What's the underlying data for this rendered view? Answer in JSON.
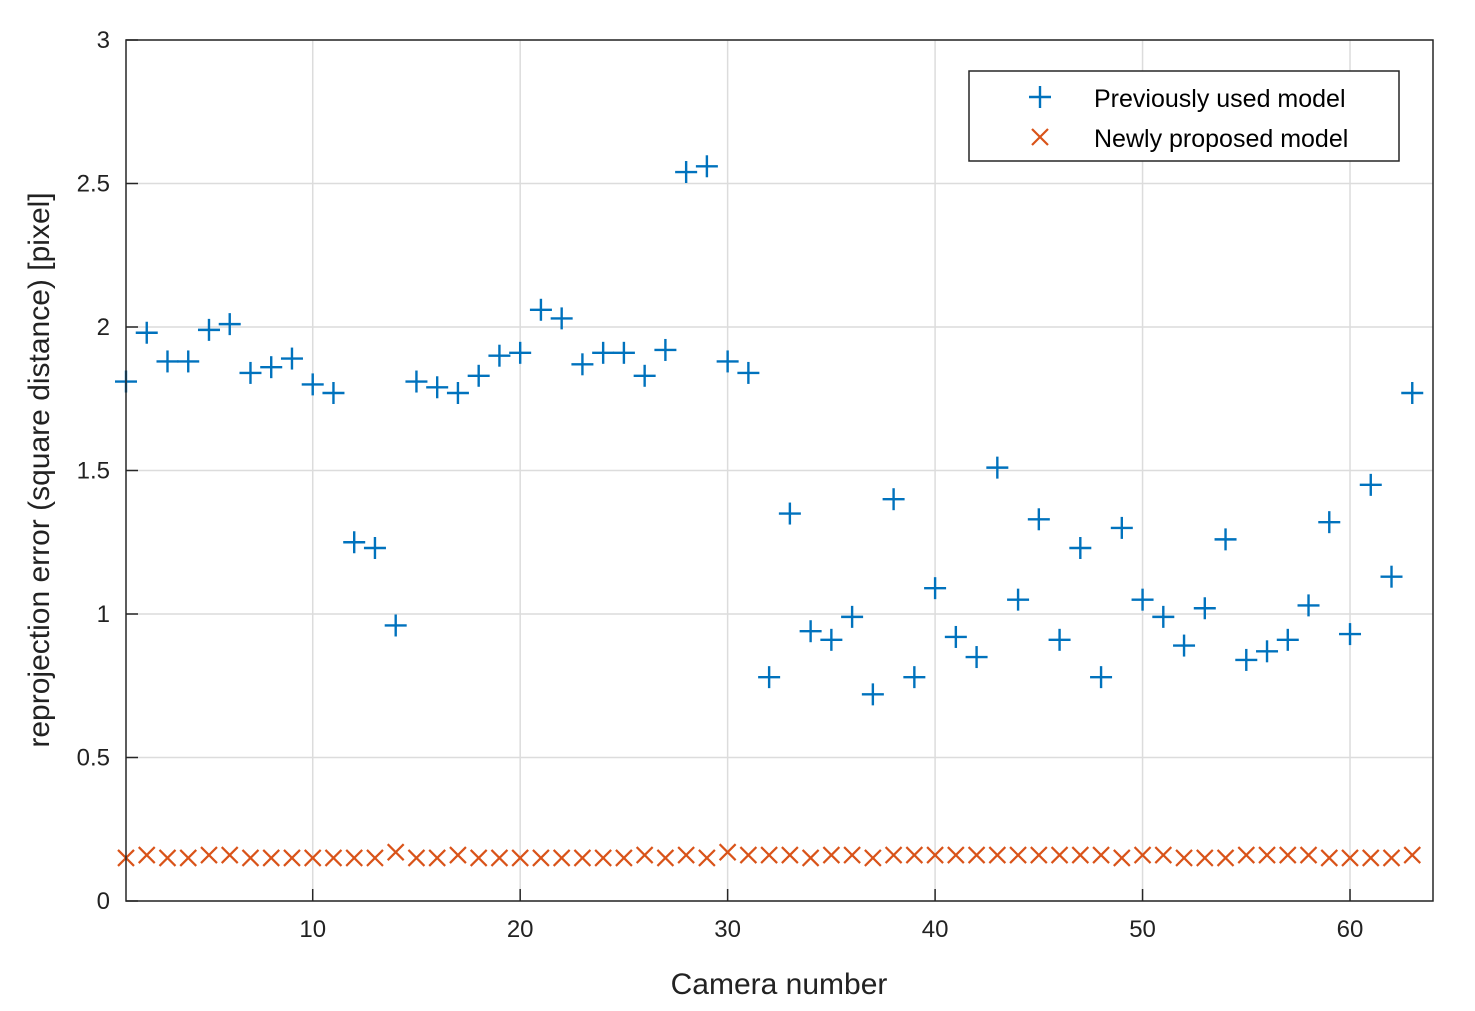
{
  "chart_data": {
    "type": "scatter",
    "title": "",
    "xlabel": "Camera number",
    "ylabel": "reprojection error (square distance) [pixel]",
    "xlim": [
      1,
      64
    ],
    "ylim": [
      0,
      3
    ],
    "xticks": [
      10,
      20,
      30,
      40,
      50,
      60
    ],
    "xtick_labels": [
      "10",
      "20",
      "30",
      "40",
      "50",
      "60"
    ],
    "yticks": [
      0,
      0.5,
      1,
      1.5,
      2,
      2.5,
      3
    ],
    "ytick_labels": [
      "0",
      "0.5",
      "1",
      "1.5",
      "2",
      "2.5",
      "3"
    ],
    "grid": true,
    "legend_position": "top-right",
    "x": [
      1,
      2,
      3,
      4,
      5,
      6,
      7,
      8,
      9,
      10,
      11,
      12,
      13,
      14,
      15,
      16,
      17,
      18,
      19,
      20,
      21,
      22,
      23,
      24,
      25,
      26,
      27,
      28,
      29,
      30,
      31,
      32,
      33,
      34,
      35,
      36,
      37,
      38,
      39,
      40,
      41,
      42,
      43,
      44,
      45,
      46,
      47,
      48,
      49,
      50,
      51,
      52,
      53,
      54,
      55,
      56,
      57,
      58,
      59,
      60,
      61,
      62,
      63
    ],
    "series": [
      {
        "name": "Previously used model",
        "marker": "plus",
        "color": "#0072BD",
        "values": [
          1.81,
          1.98,
          1.88,
          1.88,
          1.99,
          2.01,
          1.84,
          1.86,
          1.89,
          1.8,
          1.77,
          1.25,
          1.23,
          0.96,
          1.81,
          1.79,
          1.77,
          1.83,
          1.9,
          1.91,
          2.06,
          2.03,
          1.87,
          1.91,
          1.91,
          1.83,
          1.92,
          2.54,
          2.56,
          1.88,
          1.84,
          0.78,
          1.35,
          0.94,
          0.91,
          0.99,
          0.72,
          1.4,
          0.78,
          1.09,
          0.92,
          0.85,
          1.51,
          1.05,
          1.33,
          0.91,
          1.23,
          0.78,
          1.3,
          1.05,
          0.99,
          0.89,
          1.02,
          1.26,
          0.84,
          0.87,
          0.91,
          1.03,
          1.32,
          0.93,
          1.45,
          1.13,
          1.77
        ]
      },
      {
        "name": "Newly proposed model",
        "marker": "x",
        "color": "#D95319",
        "values": [
          0.15,
          0.16,
          0.15,
          0.15,
          0.16,
          0.16,
          0.15,
          0.15,
          0.15,
          0.15,
          0.15,
          0.15,
          0.15,
          0.17,
          0.15,
          0.15,
          0.16,
          0.15,
          0.15,
          0.15,
          0.15,
          0.15,
          0.15,
          0.15,
          0.15,
          0.16,
          0.15,
          0.16,
          0.15,
          0.17,
          0.16,
          0.16,
          0.16,
          0.15,
          0.16,
          0.16,
          0.15,
          0.16,
          0.16,
          0.16,
          0.16,
          0.16,
          0.16,
          0.16,
          0.16,
          0.16,
          0.16,
          0.16,
          0.15,
          0.16,
          0.16,
          0.15,
          0.15,
          0.15,
          0.16,
          0.16,
          0.16,
          0.16,
          0.15,
          0.15,
          0.15,
          0.15,
          0.16
        ]
      }
    ]
  }
}
